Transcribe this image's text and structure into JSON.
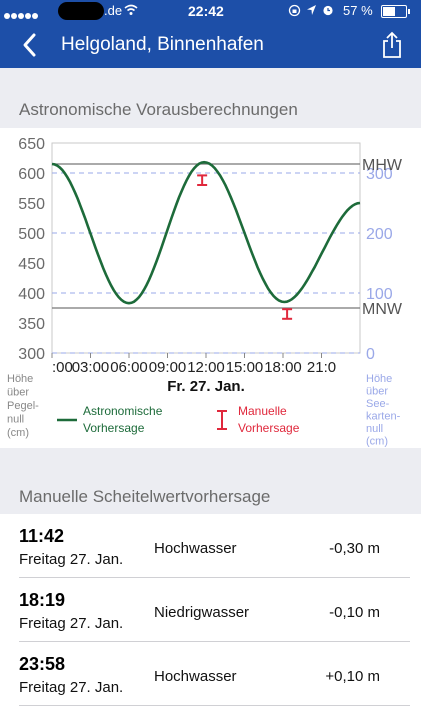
{
  "status_bar": {
    "carrier": ".de",
    "time": "22:42",
    "battery": "57 %"
  },
  "header": {
    "title": "Helgoland, Binnenhafen"
  },
  "forecast": {
    "section_title": "Astronomische Vorausberechnungen",
    "left_axis_label": [
      "Höhe",
      "über",
      "Pegel-",
      "null",
      "(cm)"
    ],
    "right_axis_label": [
      "Höhe",
      "über",
      "See-",
      "karten-",
      "null",
      "(cm)"
    ],
    "date_label": "Fr. 27. Jan.",
    "legend": {
      "astro": [
        "Astronomische",
        "Vorhersage"
      ],
      "manual": [
        "Manuelle",
        "Vorhersage"
      ]
    },
    "reference_lines": [
      {
        "label": "MHW",
        "value": 615
      },
      {
        "label": "MNW",
        "value": 375
      }
    ],
    "colors": {
      "astro": "#1d6b3a",
      "manual": "#e0283c",
      "right_axis": "#9aa8e8"
    }
  },
  "chart_data": {
    "type": "line",
    "x": [
      "00:00",
      "03:00",
      "06:00",
      "09:00",
      "12:00",
      "15:00",
      "18:00",
      "21:00",
      "23:59"
    ],
    "x_tick_labels": [
      ":00",
      "03:00",
      "06:00",
      "09:00",
      "12:00",
      "15:00",
      "18:00",
      "21:0"
    ],
    "xlabel": "Fr. 27. Jan.",
    "ylim": [
      300,
      650
    ],
    "y_ticks": [
      300,
      350,
      400,
      450,
      500,
      550,
      600,
      650
    ],
    "right_y_ticks": [
      0,
      100,
      200,
      300
    ],
    "series": [
      {
        "name": "Astronomische Vorhersage",
        "x_hours": [
          0,
          6.0,
          11.85,
          18.1,
          24
        ],
        "y_cm": [
          615,
          383,
          618,
          385,
          550
        ]
      }
    ],
    "manual_points": [
      {
        "name": "Manuelle Vorhersage",
        "x_hours": 11.7,
        "y_cm": 588,
        "y_err": 8
      },
      {
        "name": "Manuelle Vorhersage",
        "x_hours": 18.32,
        "y_cm": 365,
        "y_err": 8
      }
    ]
  },
  "manual": {
    "section_title": "Manuelle Scheitelwertvorhersage",
    "rows": [
      {
        "time": "11:42",
        "date": "Freitag 27. Jan.",
        "type": "Hochwasser",
        "delta": "-0,30 m"
      },
      {
        "time": "18:19",
        "date": "Freitag 27. Jan.",
        "type": "Niedrigwasser",
        "delta": "-0,10 m"
      },
      {
        "time": "23:58",
        "date": "Freitag 27. Jan.",
        "type": "Hochwasser",
        "delta": "+0,10 m"
      }
    ]
  }
}
